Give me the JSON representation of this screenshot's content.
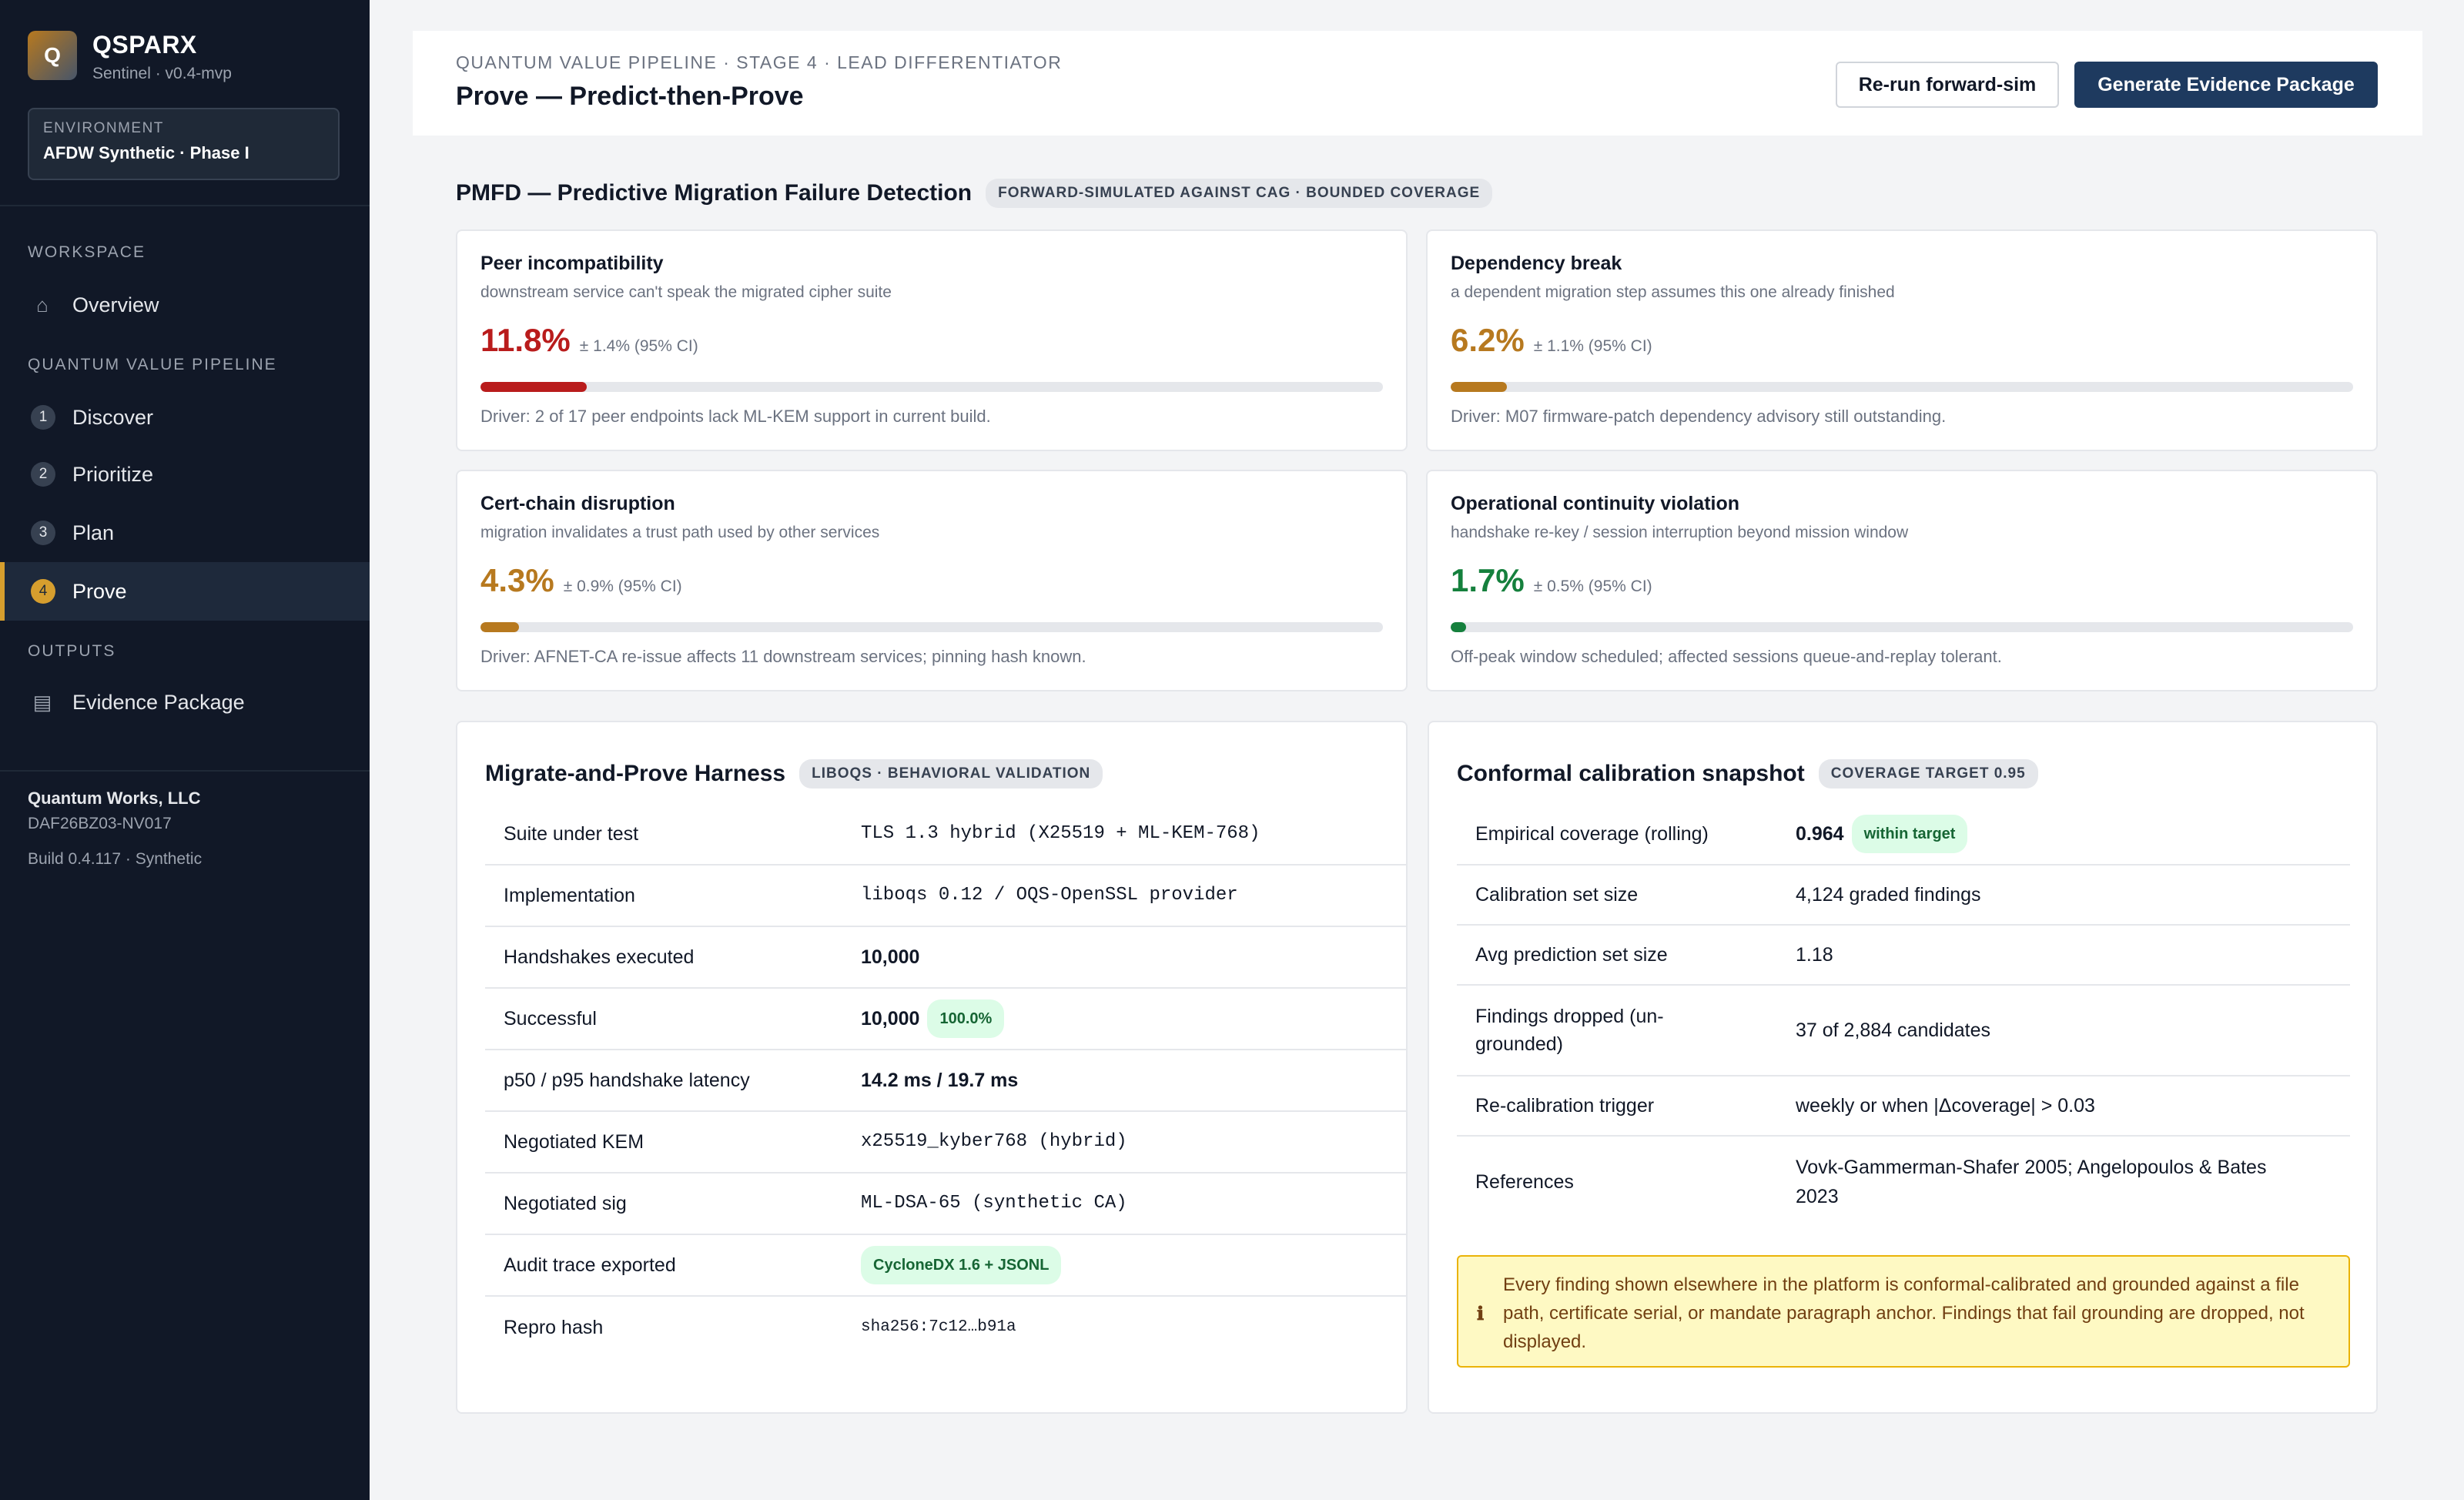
{
  "sidebar": {
    "logo_letter": "Q",
    "brand_name": "QSPARX",
    "brand_sub": "Sentinel · v0.4-mvp",
    "environment_label": "ENVIRONMENT",
    "environment_value": "AFDW Synthetic · Phase I",
    "workspace_label": "WORKSPACE",
    "overview_label": "Overview",
    "pipeline_label": "QUANTUM VALUE PIPELINE",
    "pipeline_items": [
      {
        "num": "1",
        "label": "Discover"
      },
      {
        "num": "2",
        "label": "Prioritize"
      },
      {
        "num": "3",
        "label": "Plan"
      },
      {
        "num": "4",
        "label": "Prove"
      }
    ],
    "outputs_label": "OUTPUTS",
    "evidence_label": "Evidence Package",
    "org_name": "Quantum Works, LLC",
    "org_id": "DAF26BZ03-NV017",
    "build": "Build 0.4.117 · Synthetic"
  },
  "header": {
    "breadcrumb": "QUANTUM VALUE PIPELINE · STAGE 4 · LEAD DIFFERENTIATOR",
    "title": "Prove — Predict-then-Prove",
    "rerun_label": "Re-run forward-sim",
    "generate_label": "Generate Evidence Package"
  },
  "pmfd": {
    "title": "PMFD — Predictive Migration Failure Detection",
    "badge": "FORWARD-SIMULATED AGAINST CAG · BOUNDED COVERAGE",
    "cards": [
      {
        "title": "Peer incompatibility",
        "subtitle": "downstream service can't speak the migrated cipher suite",
        "value": "11.8%",
        "ci": "± 1.4% (95% CI)",
        "fraction": 0.118,
        "color": "#b91c1c",
        "driver": "Driver: 2 of 17 peer endpoints lack ML-KEM support in current build."
      },
      {
        "title": "Dependency break",
        "subtitle": "a dependent migration step assumes this one already finished",
        "value": "6.2%",
        "ci": "± 1.1% (95% CI)",
        "fraction": 0.062,
        "color": "#b7791f",
        "driver": "Driver: M07 firmware-patch dependency advisory still outstanding."
      },
      {
        "title": "Cert-chain disruption",
        "subtitle": "migration invalidates a trust path used by other services",
        "value": "4.3%",
        "ci": "± 0.9% (95% CI)",
        "fraction": 0.043,
        "color": "#b7791f",
        "driver": "Driver: AFNET-CA re-issue affects 11 downstream services; pinning hash known."
      },
      {
        "title": "Operational continuity violation",
        "subtitle": "handshake re-key / session interruption beyond mission window",
        "value": "1.7%",
        "ci": "± 0.5% (95% CI)",
        "fraction": 0.017,
        "color": "#15803d",
        "driver": "Off-peak window scheduled; affected sessions queue-and-replay tolerant."
      }
    ]
  },
  "harness": {
    "title": "Migrate-and-Prove Harness",
    "badge": "LIBOQS · BEHAVIORAL VALIDATION",
    "rows": [
      {
        "key": "Suite under test",
        "value": "TLS 1.3 hybrid (X25519 + ML-KEM-768)"
      },
      {
        "key": "Implementation",
        "value": "liboqs 0.12 / OQS-OpenSSL provider"
      },
      {
        "key": "Handshakes executed",
        "value": "10,000"
      },
      {
        "key": "Successful",
        "value": "10,000",
        "pill": "100.0%"
      },
      {
        "key": "p50 / p95 handshake latency",
        "value": "14.2 ms / 19.7 ms"
      },
      {
        "key": "Negotiated KEM",
        "value": "x25519_kyber768 (hybrid)"
      },
      {
        "key": "Negotiated sig",
        "value": "ML-DSA-65 (synthetic CA)"
      },
      {
        "key": "Audit trace exported",
        "pill": "CycloneDX 1.6 + JSONL"
      },
      {
        "key": "Repro hash",
        "value": "sha256:7c12…b91a"
      }
    ]
  },
  "calibration": {
    "title": "Conformal calibration snapshot",
    "badge": "COVERAGE TARGET 0.95",
    "rows": [
      {
        "key": "Empirical coverage (rolling)",
        "value": "0.964",
        "pill": "within target"
      },
      {
        "key": "Calibration set size",
        "value": "4,124 graded findings"
      },
      {
        "key": "Avg prediction set size",
        "value": "1.18"
      },
      {
        "key": "Findings dropped (un-grounded)",
        "value": "37 of 2,884 candidates"
      },
      {
        "key": "Re-calibration trigger",
        "value": "weekly or when |Δcoverage| > 0.03"
      },
      {
        "key": "References",
        "value": "Vovk-Gammerman-Shafer 2005; Angelopoulos & Bates 2023"
      }
    ],
    "note_icon": "info-icon",
    "note": "Every finding shown elsewhere in the platform is conformal-calibrated and grounded against a file path, certificate serial, or mandate paragraph anchor. Findings that fail grounding are dropped, not displayed."
  }
}
